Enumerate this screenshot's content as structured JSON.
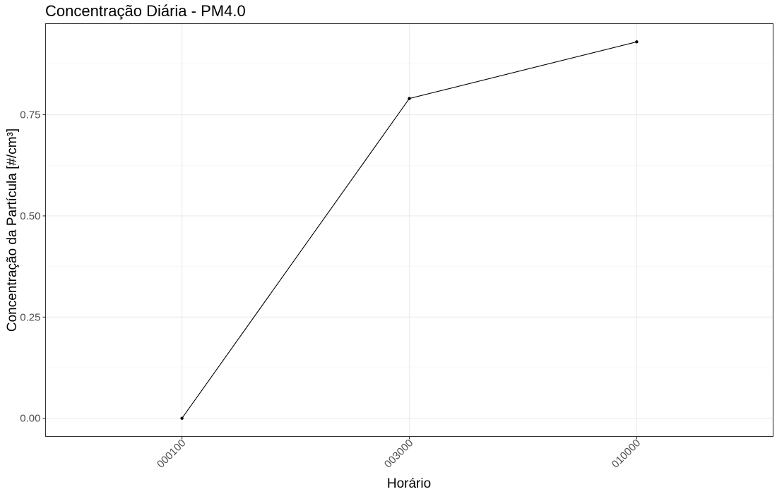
{
  "chart_data": {
    "type": "line",
    "title": "Concentração Diária - PM4.0",
    "xlabel": "Horário",
    "ylabel": "Concentração da Partícula [#/cm³]",
    "categories": [
      "000100",
      "003000",
      "010000"
    ],
    "values": [
      0.0,
      0.79,
      0.93
    ],
    "y_ticks": [
      0.0,
      0.25,
      0.5,
      0.75
    ],
    "y_tick_labels": [
      "0.00",
      "0.25",
      "0.50",
      "0.75"
    ],
    "ylim": [
      -0.045,
      0.975
    ],
    "grid": true,
    "legend": "none",
    "colors": {
      "line": "#000000",
      "grid": "#ebebeb",
      "tick_label": "#4d4d4d"
    }
  }
}
